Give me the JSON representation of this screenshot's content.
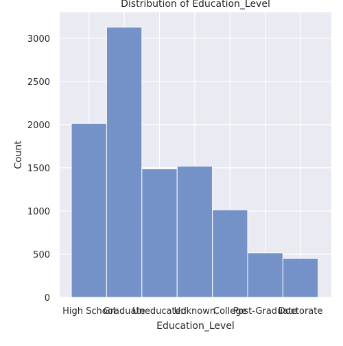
{
  "chart_data": {
    "type": "bar",
    "title": "Distribution of Education_Level",
    "xlabel": "Education_Level",
    "ylabel": "Count",
    "categories": [
      "High School",
      "Graduate",
      "Uneducated",
      "Unknown",
      "College",
      "Post-Graduate",
      "Doctorate"
    ],
    "values": [
      2013,
      3128,
      1487,
      1519,
      1013,
      516,
      451
    ],
    "ylim": [
      0,
      3300
    ],
    "yticks": [
      0,
      500,
      1000,
      1500,
      2000,
      2500,
      3000
    ],
    "grid": true,
    "legend": "none",
    "colors": {
      "background": "#eaeaf2",
      "bar": "#6e8dc4",
      "bar_edge": "#ffffff",
      "grid": "#ffffff"
    }
  }
}
